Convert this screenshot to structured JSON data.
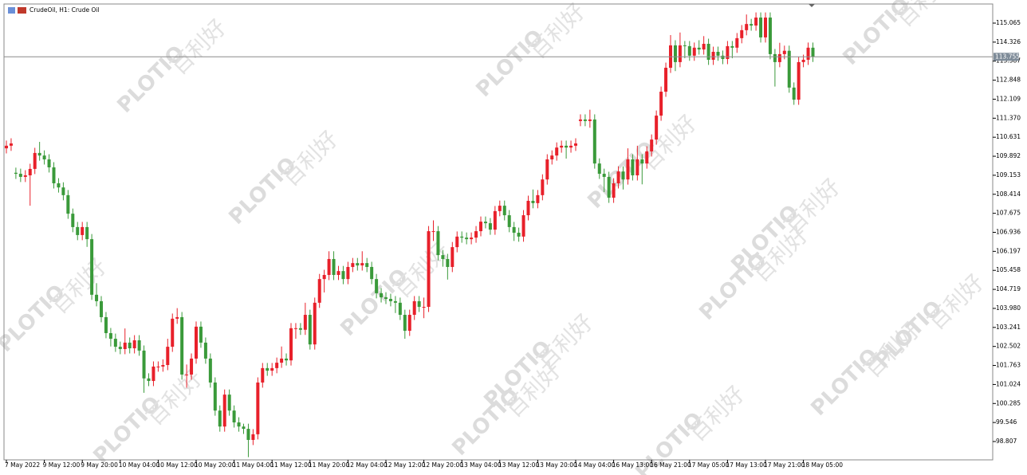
{
  "chart_data": {
    "type": "candlestick",
    "title": "CrudeOil, H1:  Crude Oil",
    "up_color": "#e8202a",
    "down_color": "#3a9a3a",
    "ylim": [
      98.095,
      115.808
    ],
    "yticks": [
      115.065,
      114.326,
      113.587,
      112.848,
      112.109,
      {
        "value": 111.37,
        "label": "111.370"
      },
      110.631,
      109.892,
      109.153,
      108.414,
      107.675,
      106.936,
      106.197,
      105.458,
      104.719,
      {
        "value": 103.98,
        "label": "103.980"
      },
      103.241,
      102.502,
      101.763,
      101.024,
      100.285,
      99.546,
      98.807
    ],
    "xticks": [
      {
        "value": 0,
        "label": "7 May 2022"
      },
      {
        "value": 8,
        "label": "9 May 12:00"
      },
      {
        "value": 16,
        "label": "9 May 20:00"
      },
      {
        "value": 24,
        "label": "10 May 04:00"
      },
      {
        "value": 32,
        "label": "10 May 12:00"
      },
      {
        "value": 40,
        "label": "10 May 20:00"
      },
      {
        "value": 48,
        "label": "11 May 04:00"
      },
      {
        "value": 56,
        "label": "11 May 12:00"
      },
      {
        "value": 64,
        "label": "11 May 20:00"
      },
      {
        "value": 72,
        "label": "12 May 04:00"
      },
      {
        "value": 80,
        "label": "12 May 12:00"
      },
      {
        "value": 88,
        "label": "12 May 20:00"
      },
      {
        "value": 96,
        "label": "13 May 04:00"
      },
      {
        "value": 104,
        "label": "13 May 12:00"
      },
      {
        "value": 112,
        "label": "13 May 20:00"
      },
      {
        "value": 120,
        "label": "14 May 04:00"
      },
      {
        "value": 128,
        "label": "16 May 13:00"
      },
      {
        "value": 136,
        "label": "16 May 21:00"
      },
      {
        "value": 144,
        "label": "17 May 05:00"
      },
      {
        "value": 152,
        "label": "17 May 13:00"
      },
      {
        "value": 160,
        "label": "17 May 21:00"
      },
      {
        "value": 168,
        "label": "18 May 05:00"
      }
    ],
    "price_line": 113.755,
    "watermark": {
      "brand": "PLOTIO",
      "cn": "百利好"
    },
    "ohlc": [
      [
        110.2,
        110.5,
        110.0,
        110.3
      ],
      [
        110.3,
        110.59,
        110.1,
        110.39
      ],
      [
        109.25,
        109.45,
        109.01,
        109.21
      ],
      [
        109.21,
        109.41,
        108.89,
        109.09
      ],
      [
        109.09,
        109.35,
        108.89,
        109.15
      ],
      [
        109.15,
        109.6,
        107.97,
        109.4
      ],
      [
        109.4,
        110.22,
        109.2,
        110.02
      ],
      [
        110.02,
        110.45,
        109.72,
        109.92
      ],
      [
        109.92,
        110.12,
        109.57,
        109.77
      ],
      [
        109.77,
        109.97,
        109.26,
        109.46
      ],
      [
        109.46,
        109.66,
        108.64,
        108.84
      ],
      [
        108.84,
        109.04,
        108.48,
        108.68
      ],
      [
        108.68,
        108.88,
        108.18,
        108.38
      ],
      [
        108.38,
        108.58,
        107.46,
        107.66
      ],
      [
        107.66,
        107.86,
        106.94,
        107.14
      ],
      [
        107.14,
        107.34,
        106.63,
        106.83
      ],
      [
        106.83,
        107.34,
        106.63,
        107.14
      ],
      [
        107.14,
        107.34,
        106.37,
        106.67
      ],
      [
        106.67,
        106.87,
        104.31,
        104.51
      ],
      [
        104.51,
        104.96,
        104.06,
        104.26
      ],
      [
        104.26,
        104.46,
        103.44,
        103.64
      ],
      [
        103.64,
        103.84,
        102.82,
        103.02
      ],
      [
        103.02,
        103.22,
        102.5,
        102.8
      ],
      [
        102.8,
        103.0,
        102.29,
        102.49
      ],
      [
        102.49,
        102.69,
        102.2,
        102.4
      ],
      [
        102.4,
        103.2,
        102.2,
        102.65
      ],
      [
        102.65,
        102.85,
        102.23,
        102.43
      ],
      [
        102.43,
        102.94,
        102.23,
        102.74
      ],
      [
        102.74,
        102.94,
        102.14,
        102.34
      ],
      [
        102.34,
        102.54,
        100.7,
        101.26
      ],
      [
        101.26,
        101.46,
        100.96,
        101.16
      ],
      [
        101.16,
        101.92,
        100.96,
        101.72
      ],
      [
        101.72,
        101.92,
        101.52,
        101.72
      ],
      [
        101.72,
        102.0,
        101.52,
        101.78
      ],
      [
        101.78,
        102.8,
        101.58,
        102.49
      ],
      [
        102.49,
        103.78,
        102.29,
        103.58
      ],
      [
        103.58,
        103.99,
        103.38,
        103.64
      ],
      [
        103.64,
        103.84,
        101.21,
        101.41
      ],
      [
        101.41,
        101.8,
        100.9,
        101.41
      ],
      [
        101.41,
        102.23,
        101.21,
        102.03
      ],
      [
        102.03,
        103.47,
        101.83,
        103.27
      ],
      [
        103.27,
        103.47,
        102.45,
        102.65
      ],
      [
        102.65,
        102.85,
        101.83,
        102.03
      ],
      [
        102.03,
        102.23,
        100.9,
        101.1
      ],
      [
        101.1,
        101.3,
        99.81,
        100.01
      ],
      [
        100.01,
        100.21,
        99.19,
        99.39
      ],
      [
        99.39,
        100.83,
        99.19,
        100.63
      ],
      [
        100.63,
        100.83,
        99.81,
        100.01
      ],
      [
        100.01,
        100.21,
        99.35,
        99.55
      ],
      [
        99.55,
        99.75,
        99.19,
        99.39
      ],
      [
        99.39,
        99.5,
        99.1,
        99.3
      ],
      [
        99.3,
        99.5,
        98.2,
        98.87
      ],
      [
        98.87,
        99.29,
        98.67,
        99.09
      ],
      [
        99.09,
        101.3,
        98.89,
        101.1
      ],
      [
        101.1,
        101.86,
        100.9,
        101.66
      ],
      [
        101.66,
        101.86,
        101.36,
        101.56
      ],
      [
        101.56,
        101.86,
        101.36,
        101.66
      ],
      [
        101.66,
        102.07,
        101.46,
        101.87
      ],
      [
        101.87,
        102.5,
        101.67,
        102.03
      ],
      [
        102.03,
        102.23,
        101.76,
        101.96
      ],
      [
        101.96,
        103.41,
        101.76,
        103.21
      ],
      [
        103.21,
        103.41,
        102.8,
        103.21
      ],
      [
        103.21,
        103.41,
        102.95,
        103.15
      ],
      [
        103.15,
        104.2,
        102.95,
        103.73
      ],
      [
        103.73,
        103.93,
        102.38,
        102.58
      ],
      [
        102.58,
        104.4,
        102.38,
        104.2
      ],
      [
        104.2,
        105.32,
        104.0,
        105.12
      ],
      [
        105.12,
        105.48,
        104.6,
        105.28
      ],
      [
        105.28,
        106.2,
        105.08,
        105.9
      ],
      [
        105.9,
        106.2,
        105.08,
        105.28
      ],
      [
        105.28,
        105.63,
        105.08,
        105.43
      ],
      [
        105.43,
        105.63,
        104.92,
        105.12
      ],
      [
        105.12,
        105.79,
        104.92,
        105.59
      ],
      [
        105.59,
        105.94,
        105.39,
        105.74
      ],
      [
        105.74,
        105.94,
        105.45,
        105.65
      ],
      [
        105.65,
        106.2,
        105.45,
        105.74
      ],
      [
        105.74,
        105.94,
        105.39,
        105.59
      ],
      [
        105.59,
        105.79,
        104.92,
        105.12
      ],
      [
        105.12,
        105.32,
        104.37,
        104.57
      ],
      [
        104.57,
        104.77,
        104.21,
        104.41
      ],
      [
        104.41,
        104.61,
        104.15,
        104.35
      ],
      [
        104.35,
        104.55,
        104.06,
        104.26
      ],
      [
        104.26,
        104.46,
        103.8,
        104.2
      ],
      [
        104.2,
        104.4,
        103.53,
        103.73
      ],
      [
        103.73,
        103.93,
        102.8,
        103.11
      ],
      [
        103.11,
        103.93,
        102.91,
        103.73
      ],
      [
        103.73,
        104.46,
        103.53,
        104.26
      ],
      [
        104.26,
        104.46,
        103.84,
        104.04
      ],
      [
        104.04,
        104.4,
        103.6,
        104.04
      ],
      [
        104.04,
        107.18,
        103.84,
        106.98
      ],
      [
        106.98,
        107.4,
        106.6,
        106.98
      ],
      [
        106.98,
        107.18,
        105.85,
        106.05
      ],
      [
        106.05,
        106.25,
        105.6,
        105.9
      ],
      [
        105.9,
        106.1,
        105.1,
        105.59
      ],
      [
        105.59,
        106.56,
        105.39,
        106.36
      ],
      [
        106.36,
        106.97,
        106.16,
        106.77
      ],
      [
        106.77,
        106.97,
        106.53,
        106.73
      ],
      [
        106.73,
        106.93,
        106.47,
        106.67
      ],
      [
        106.67,
        106.93,
        106.47,
        106.73
      ],
      [
        106.73,
        107.18,
        106.53,
        106.98
      ],
      [
        106.98,
        107.55,
        106.78,
        107.35
      ],
      [
        107.35,
        107.55,
        107.09,
        107.29
      ],
      [
        107.29,
        107.49,
        106.84,
        107.04
      ],
      [
        107.04,
        107.96,
        106.84,
        107.76
      ],
      [
        107.76,
        108.17,
        107.56,
        107.97
      ],
      [
        107.97,
        108.17,
        107.4,
        107.6
      ],
      [
        107.6,
        107.8,
        106.94,
        107.14
      ],
      [
        107.14,
        107.34,
        106.6,
        106.92
      ],
      [
        106.92,
        107.12,
        106.57,
        106.77
      ],
      [
        106.77,
        107.8,
        106.57,
        107.6
      ],
      [
        107.6,
        108.36,
        107.4,
        108.16
      ],
      [
        108.16,
        108.6,
        107.87,
        108.07
      ],
      [
        108.07,
        108.58,
        107.87,
        108.38
      ],
      [
        108.38,
        109.19,
        108.18,
        108.99
      ],
      [
        108.99,
        109.97,
        108.79,
        109.77
      ],
      [
        109.77,
        110.12,
        109.57,
        109.92
      ],
      [
        109.92,
        110.43,
        109.72,
        110.23
      ],
      [
        110.23,
        110.5,
        110.03,
        110.3
      ],
      [
        110.3,
        110.5,
        109.8,
        110.23
      ],
      [
        110.23,
        110.5,
        110.03,
        110.3
      ],
      [
        110.3,
        110.59,
        110.1,
        110.39
      ],
      [
        111.26,
        111.52,
        111.06,
        111.32
      ],
      [
        111.32,
        111.52,
        111.06,
        111.26
      ],
      [
        111.26,
        111.7,
        111.0,
        111.32
      ],
      [
        111.32,
        111.52,
        109.41,
        109.61
      ],
      [
        109.61,
        109.81,
        109.01,
        109.21
      ],
      [
        109.21,
        109.41,
        108.5,
        109.09
      ],
      [
        109.09,
        109.29,
        108.08,
        108.28
      ],
      [
        108.28,
        109.04,
        108.08,
        108.84
      ],
      [
        108.84,
        109.5,
        108.64,
        109.3
      ],
      [
        109.3,
        109.5,
        108.6,
        108.99
      ],
      [
        108.99,
        110.2,
        108.79,
        109.77
      ],
      [
        109.77,
        109.97,
        108.95,
        109.15
      ],
      [
        109.15,
        110.3,
        108.95,
        109.77
      ],
      [
        109.77,
        109.97,
        108.8,
        109.61
      ],
      [
        109.61,
        110.28,
        109.41,
        110.08
      ],
      [
        110.08,
        110.74,
        109.88,
        110.54
      ],
      [
        110.54,
        111.67,
        110.34,
        111.47
      ],
      [
        111.47,
        112.6,
        111.27,
        112.4
      ],
      [
        112.4,
        113.53,
        112.2,
        113.33
      ],
      [
        113.33,
        114.6,
        113.13,
        114.2
      ],
      [
        114.2,
        114.4,
        113.2,
        113.55
      ],
      [
        113.55,
        114.7,
        113.35,
        114.2
      ],
      [
        114.2,
        114.37,
        113.7,
        114.17
      ],
      [
        114.17,
        114.37,
        113.6,
        113.8
      ],
      [
        113.8,
        114.31,
        113.6,
        114.11
      ],
      [
        114.11,
        114.4,
        113.84,
        114.04
      ],
      [
        114.04,
        114.56,
        113.84,
        114.26
      ],
      [
        114.26,
        114.46,
        113.44,
        113.64
      ],
      [
        113.64,
        114.15,
        113.44,
        113.95
      ],
      [
        113.95,
        114.15,
        113.6,
        113.8
      ],
      [
        113.8,
        114.0,
        113.47,
        113.67
      ],
      [
        113.67,
        114.37,
        113.47,
        114.17
      ],
      [
        114.17,
        114.37,
        113.7,
        114.11
      ],
      [
        114.11,
        114.68,
        113.91,
        114.48
      ],
      [
        114.48,
        114.99,
        114.28,
        114.79
      ],
      [
        114.79,
        115.4,
        114.59,
        115.03
      ],
      [
        115.03,
        115.23,
        114.77,
        114.97
      ],
      [
        114.97,
        115.48,
        114.77,
        115.28
      ],
      [
        115.28,
        115.48,
        114.31,
        114.51
      ],
      [
        114.51,
        115.48,
        114.31,
        115.28
      ],
      [
        115.28,
        115.48,
        113.66,
        113.86
      ],
      [
        113.86,
        114.06,
        112.6,
        113.55
      ],
      [
        113.55,
        114.3,
        113.35,
        113.86
      ],
      [
        113.86,
        114.19,
        113.66,
        113.99
      ],
      [
        113.99,
        114.19,
        112.36,
        112.56
      ],
      [
        112.56,
        112.76,
        111.89,
        112.09
      ],
      [
        112.09,
        113.75,
        111.89,
        113.55
      ],
      [
        113.55,
        113.84,
        113.35,
        113.64
      ],
      [
        113.64,
        114.31,
        113.44,
        114.11
      ],
      [
        114.11,
        114.31,
        113.555,
        113.755
      ]
    ]
  }
}
